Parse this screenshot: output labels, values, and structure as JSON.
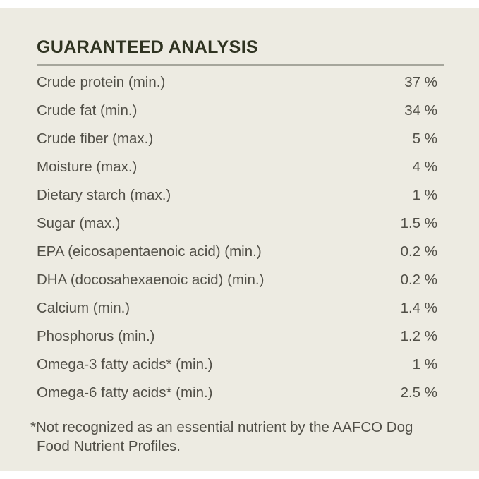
{
  "panel": {
    "title": "GUARANTEED ANALYSIS",
    "rows": [
      {
        "label": "Crude protein (min.)",
        "value": "37 %"
      },
      {
        "label": "Crude fat (min.)",
        "value": "34 %"
      },
      {
        "label": "Crude fiber (max.)",
        "value": "5 %"
      },
      {
        "label": "Moisture (max.)",
        "value": "4 %"
      },
      {
        "label": "Dietary starch (max.)",
        "value": "1 %"
      },
      {
        "label": "Sugar (max.)",
        "value": "1.5 %"
      },
      {
        "label": "EPA (eicosapentaenoic acid) (min.)",
        "value": "0.2 %"
      },
      {
        "label": "DHA (docosahexaenoic acid) (min.)",
        "value": "0.2 %"
      },
      {
        "label": "Calcium (min.)",
        "value": "1.4 %"
      },
      {
        "label": "Phosphorus (min.)",
        "value": "1.2 %"
      },
      {
        "label": "Omega-3 fatty acids* (min.)",
        "value": "1 %"
      },
      {
        "label": "Omega-6 fatty acids* (min.)",
        "value": "2.5 %"
      }
    ],
    "footnote": "*Not recognized as an essential nutrient by the AAFCO Dog Food Nutrient Profiles.",
    "footnote_lines": [
      "*Not recognized as an essential nutrient by the AAFCO Dog",
      "Food Nutrient Profiles."
    ]
  },
  "colors": {
    "page_background": "#ffffff",
    "card_background": "#edebe2",
    "title_text": "#2f3321",
    "body_text": "#514f47",
    "divider": "#a6a69c"
  }
}
